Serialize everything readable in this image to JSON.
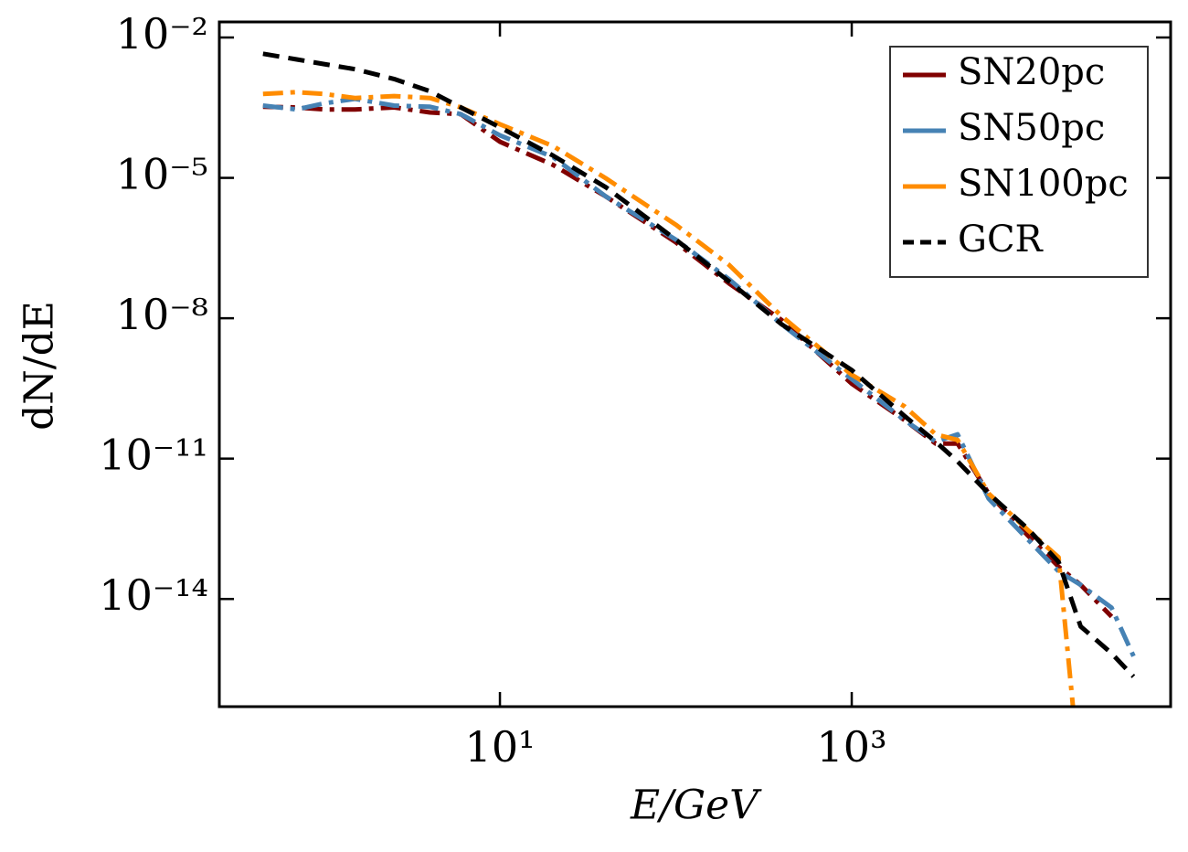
{
  "chart_data": {
    "type": "line",
    "x_label": "E/GeV",
    "y_label": "dN/dE",
    "x_log": true,
    "y_log": true,
    "xlim": [
      0.254,
      65000
    ],
    "ylim": [
      0.0215,
      5e-17
    ],
    "xticks": [
      {
        "value": 10,
        "label": "10¹"
      },
      {
        "value": 1000,
        "label": "10³"
      }
    ],
    "yticks": [
      {
        "value": 0.01,
        "label": "10⁻²"
      },
      {
        "value": 1e-05,
        "label": "10⁻⁵"
      },
      {
        "value": 1e-08,
        "label": "10⁻⁸"
      },
      {
        "value": 1e-11,
        "label": "10⁻¹¹"
      },
      {
        "value": 1e-14,
        "label": "10⁻¹⁴"
      }
    ],
    "legend": "upper right",
    "x": [
      0.45,
      0.7,
      1,
      1.5,
      2.5,
      4,
      6,
      10,
      20,
      40,
      100,
      200,
      400,
      1000,
      2000,
      3000,
      4000,
      6000,
      10000,
      15000,
      20000,
      30000,
      40000
    ],
    "series": [
      {
        "name": "SN20pc",
        "color": "#800000",
        "linestyle": "-.",
        "values": [
          0.00033,
          0.00032,
          0.00029,
          0.00029,
          0.00032,
          0.00025,
          0.00023,
          5.9e-05,
          1.9e-05,
          4e-06,
          4.2e-07,
          5.6e-08,
          9.1e-09,
          4e-10,
          6.6e-11,
          2.1e-11,
          2.1e-11,
          1.8e-12,
          2.3e-13,
          4.9e-14,
          2e-14,
          4.2e-15,
          null
        ]
      },
      {
        "name": "SN50pc",
        "color": "#4682b4",
        "linestyle": "-.",
        "values": [
          0.00035,
          0.00029,
          0.00039,
          0.00049,
          0.00035,
          0.00033,
          0.00023,
          8.1e-05,
          2.8e-05,
          4e-06,
          4.8e-07,
          6.9e-08,
          7.4e-09,
          5e-10,
          6.6e-11,
          2.3e-11,
          3.3e-11,
          1.4e-12,
          1.9e-13,
          3.9e-14,
          2e-14,
          6.5e-15,
          6e-16
        ]
      },
      {
        "name": "SN100pc",
        "color": "#ff8c00",
        "linestyle": "-.",
        "values": [
          0.00062,
          0.00068,
          0.00062,
          0.00051,
          0.00056,
          0.00051,
          0.00032,
          0.00014,
          4.8e-05,
          9.8e-06,
          1e-06,
          1.4e-07,
          1.1e-08,
          6.2e-10,
          1.3e-10,
          3.3e-11,
          2.5e-11,
          1.8e-12,
          3e-13,
          7.8e-14,
          1e-18,
          null,
          null
        ]
      },
      {
        "name": "GCR",
        "color": "#000000",
        "linestyle": "--",
        "values": [
          0.0045,
          0.0034,
          0.0027,
          0.0021,
          0.0013,
          0.00071,
          0.00032,
          0.00012,
          3e-05,
          6.3e-06,
          4.8e-07,
          6.2e-08,
          7.4e-09,
          7.8e-10,
          8.1e-11,
          2.3e-11,
          8.7e-12,
          1.8e-12,
          3.2e-13,
          6.2e-14,
          2.6e-15,
          6.9e-16,
          2.2e-16
        ]
      }
    ]
  }
}
